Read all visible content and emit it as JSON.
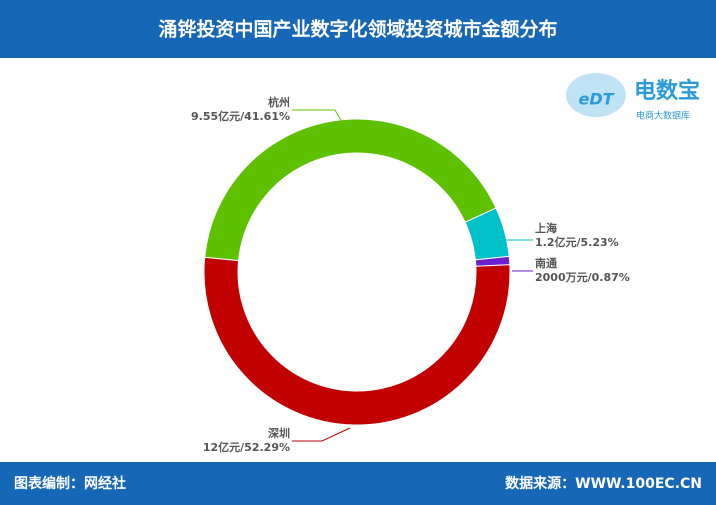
{
  "chart_data": {
    "type": "donut",
    "title": "涌铧投资中国产业数字化领域投资城市金额分布",
    "categories": [
      "杭州",
      "上海",
      "南通",
      "深圳"
    ],
    "values": [
      41.61,
      5.23,
      0.87,
      52.29
    ],
    "value_labels": [
      "9.55亿元/41.61%",
      "1.2亿元/5.23%",
      "2000万元/0.87%",
      "12亿元/52.29%"
    ],
    "colors": [
      "#5dc100",
      "#00c0c8",
      "#6a1fd0",
      "#c20000"
    ]
  },
  "logo": {
    "mark": "eDT",
    "name": "电数宝",
    "tagline": "电商大数据库"
  },
  "footer": {
    "left": "图表编制：网经社",
    "right": "数据来源：WWW.100EC.CN"
  }
}
